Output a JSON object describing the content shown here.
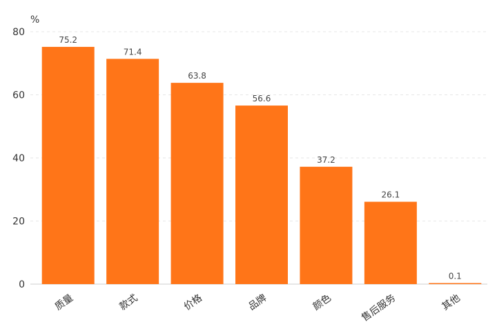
{
  "chart_data": {
    "type": "bar",
    "title": "",
    "xlabel": "",
    "ylabel": "%",
    "ylim": [
      0,
      80
    ],
    "yticks": [
      0,
      20,
      40,
      60,
      80
    ],
    "grid": true,
    "categories": [
      "质量",
      "款式",
      "价格",
      "品牌",
      "颜色",
      "售后服务",
      "其他"
    ],
    "values": [
      75.2,
      71.4,
      63.8,
      56.6,
      37.2,
      26.1,
      0.1
    ],
    "value_labels": [
      "75.2",
      "71.4",
      "63.8",
      "56.6",
      "37.2",
      "26.1",
      "0.1"
    ],
    "bar_color": "#FF7518"
  }
}
